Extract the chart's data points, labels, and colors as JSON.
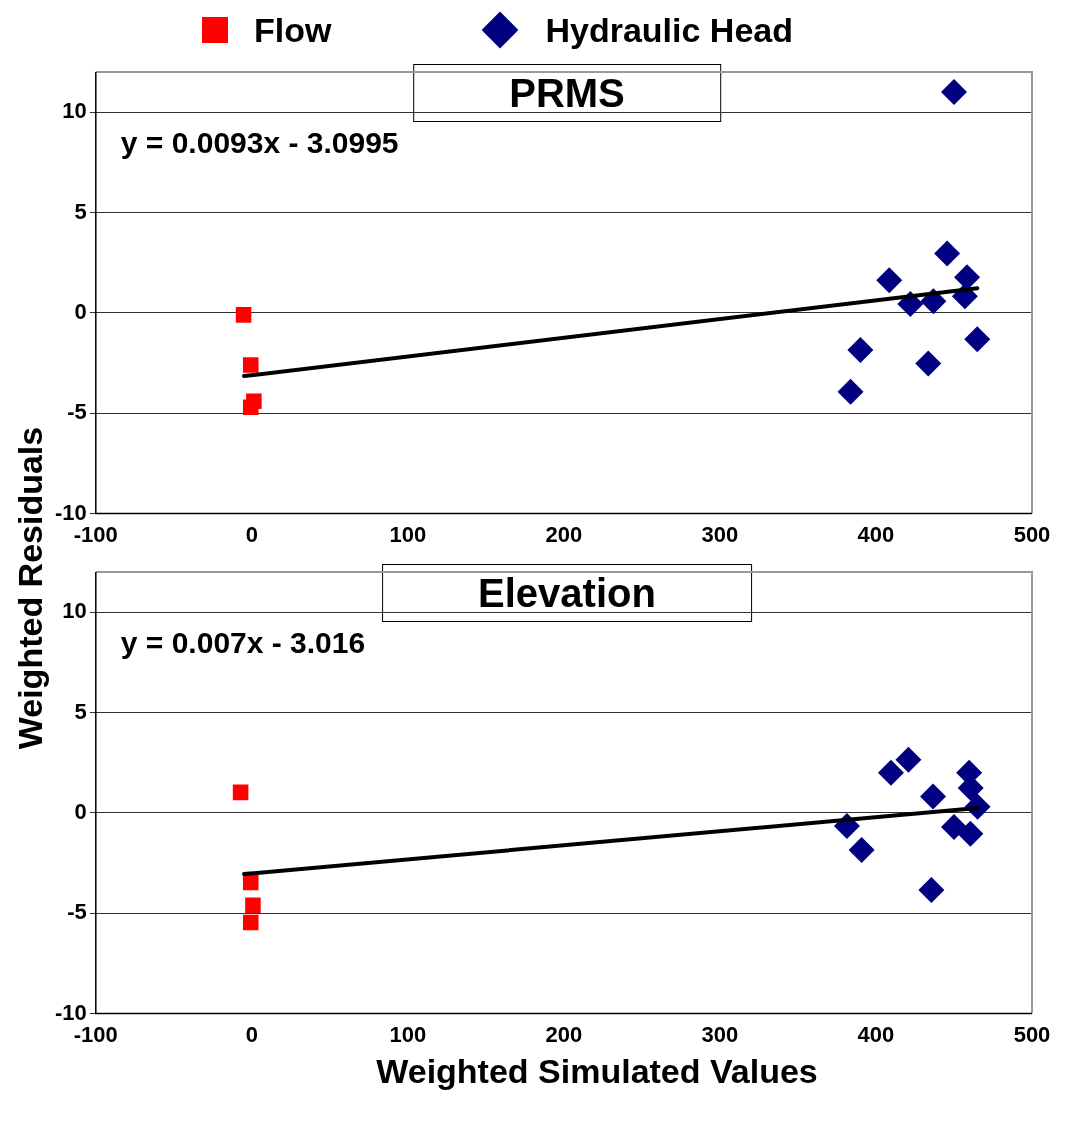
{
  "chart_data": [
    {
      "type": "scatter",
      "title": "PRMS",
      "ylabel": "Weighted Residuals",
      "annotations": [
        "y = 0.0093x - 3.0995"
      ],
      "xlim": [
        -100,
        500
      ],
      "xticks": [
        -100,
        0,
        100,
        200,
        300,
        400,
        500
      ],
      "ylim": [
        -10,
        12
      ],
      "yticks": [
        -10,
        -5,
        0,
        5,
        10
      ],
      "grid": "y",
      "legend": "top",
      "series": [
        {
          "name": "Flow",
          "color": "#ff0000",
          "marker": "square",
          "x": [
            -5.3,
            -0.7,
            1.3,
            -0.7
          ],
          "values": [
            -0.1,
            -2.6,
            -4.4,
            -4.7
          ]
        },
        {
          "name": "Hydraulic Head",
          "color": "#000080",
          "marker": "diamond",
          "x": [
            450,
            445.6,
            408.5,
            458.4,
            422,
            436.8,
            457,
            464.9,
            390,
            433.5,
            383.7
          ],
          "values": [
            11.0,
            2.96,
            1.63,
            1.77,
            0.44,
            0.58,
            0.83,
            -1.31,
            -1.85,
            -2.52,
            -3.93
          ]
        },
        {
          "type": "line",
          "color": "#000000",
          "marker": "none",
          "x": [
            -5,
            465
          ],
          "values": [
            -3.15,
            1.23
          ]
        }
      ]
    },
    {
      "type": "scatter",
      "title": "Elevation",
      "xlabel": "Weighted Simulated Values",
      "annotations": [
        "y = 0.007x - 3.016"
      ],
      "xlim": [
        -100,
        500
      ],
      "xticks": [
        -100,
        0,
        100,
        200,
        300,
        400,
        500
      ],
      "ylim": [
        -10,
        12
      ],
      "yticks": [
        -10,
        -5,
        0,
        5,
        10
      ],
      "grid": "y",
      "series": [
        {
          "color": "#ff0000",
          "marker": "square",
          "x": [
            -7.2,
            -0.7,
            0.7,
            -0.7
          ],
          "values": [
            1.02,
            -3.47,
            -4.6,
            -5.46
          ]
        },
        {
          "color": "#000080",
          "marker": "diamond",
          "x": [
            420.8,
            409.6,
            459.7,
            460.7,
            436.6,
            465.1,
            381.4,
            450,
            460.5,
            390.8,
            435.5
          ],
          "values": [
            2.65,
            2.0,
            2.0,
            1.24,
            0.82,
            0.31,
            -0.66,
            -0.71,
            -1.04,
            -1.85,
            -3.84
          ]
        },
        {
          "type": "line",
          "color": "#000000",
          "marker": "none",
          "x": [
            -5,
            465
          ],
          "values": [
            -3.05,
            0.24
          ]
        }
      ]
    }
  ]
}
